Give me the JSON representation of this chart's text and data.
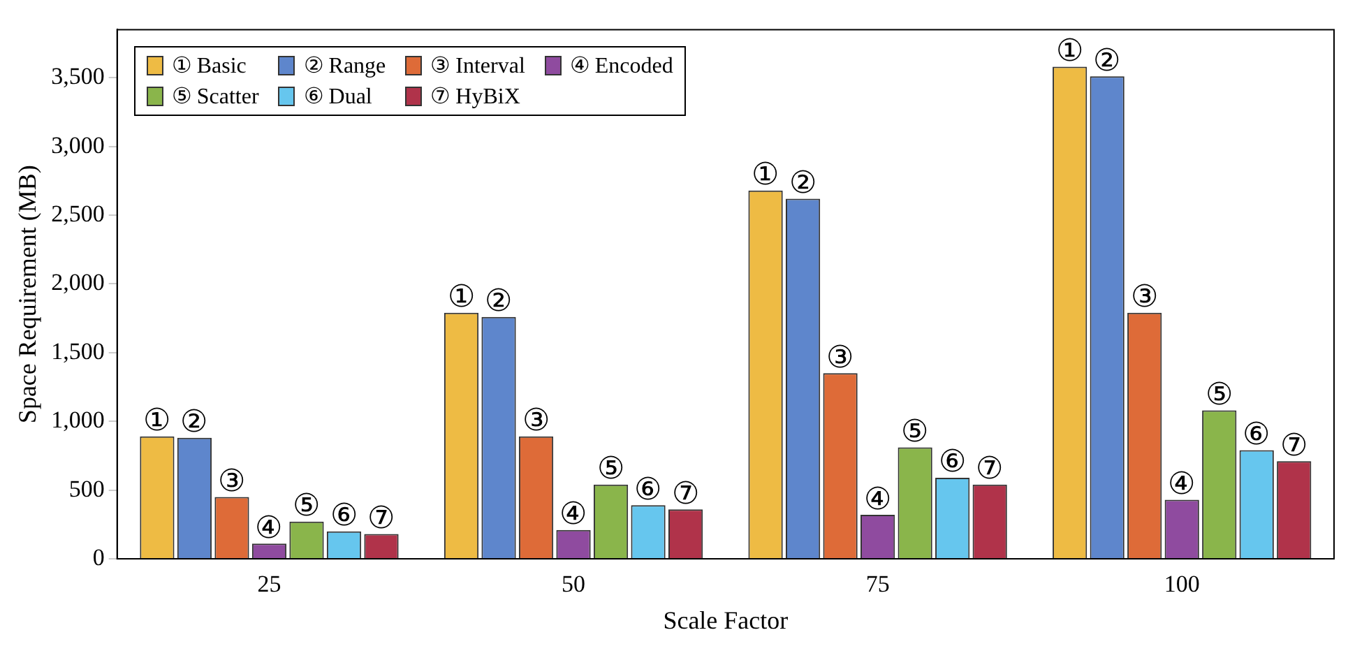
{
  "chart_data": {
    "type": "bar",
    "xlabel": "Scale Factor",
    "ylabel": "Space Requirement (MB)",
    "categories": [
      "25",
      "50",
      "75",
      "100"
    ],
    "series": [
      {
        "name": "① Basic",
        "color": "#eebb44",
        "values": [
          890,
          1790,
          2680,
          3580
        ]
      },
      {
        "name": "② Range",
        "color": "#5e86cc",
        "values": [
          880,
          1760,
          2620,
          3510
        ]
      },
      {
        "name": "③ Interval",
        "color": "#de6b38",
        "values": [
          450,
          890,
          1350,
          1790
        ]
      },
      {
        "name": "④ Encoded",
        "color": "#8f4b9f",
        "values": [
          110,
          210,
          320,
          430
        ]
      },
      {
        "name": "⑤ Scatter",
        "color": "#8ab54b",
        "values": [
          270,
          540,
          810,
          1080
        ]
      },
      {
        "name": "⑥ Dual",
        "color": "#66c6ee",
        "values": [
          200,
          390,
          590,
          790
        ]
      },
      {
        "name": "⑦ HyBiX",
        "color": "#b0334a",
        "values": [
          180,
          360,
          540,
          710
        ]
      }
    ],
    "annotations": [
      "①",
      "②",
      "③",
      "④",
      "⑤",
      "⑥",
      "⑦",
      "①",
      "②",
      "③",
      "④",
      "⑤",
      "⑥",
      "⑦",
      "①",
      "②",
      "③",
      "④",
      "⑤",
      "⑥",
      "⑦",
      "①",
      "②",
      "③",
      "④",
      "⑤",
      "⑥",
      "⑦"
    ],
    "ylim": [
      0,
      3850
    ],
    "yticks": [
      {
        "value": 0,
        "label": "0"
      },
      {
        "value": 500,
        "label": "500"
      },
      {
        "value": 1000,
        "label": "1,000"
      },
      {
        "value": 1500,
        "label": "1,500"
      },
      {
        "value": 2000,
        "label": "2,000"
      },
      {
        "value": 2500,
        "label": "2,500"
      },
      {
        "value": 3000,
        "label": "3,000"
      },
      {
        "value": 3500,
        "label": "3,500"
      }
    ],
    "grid": false,
    "legend": "top left"
  }
}
